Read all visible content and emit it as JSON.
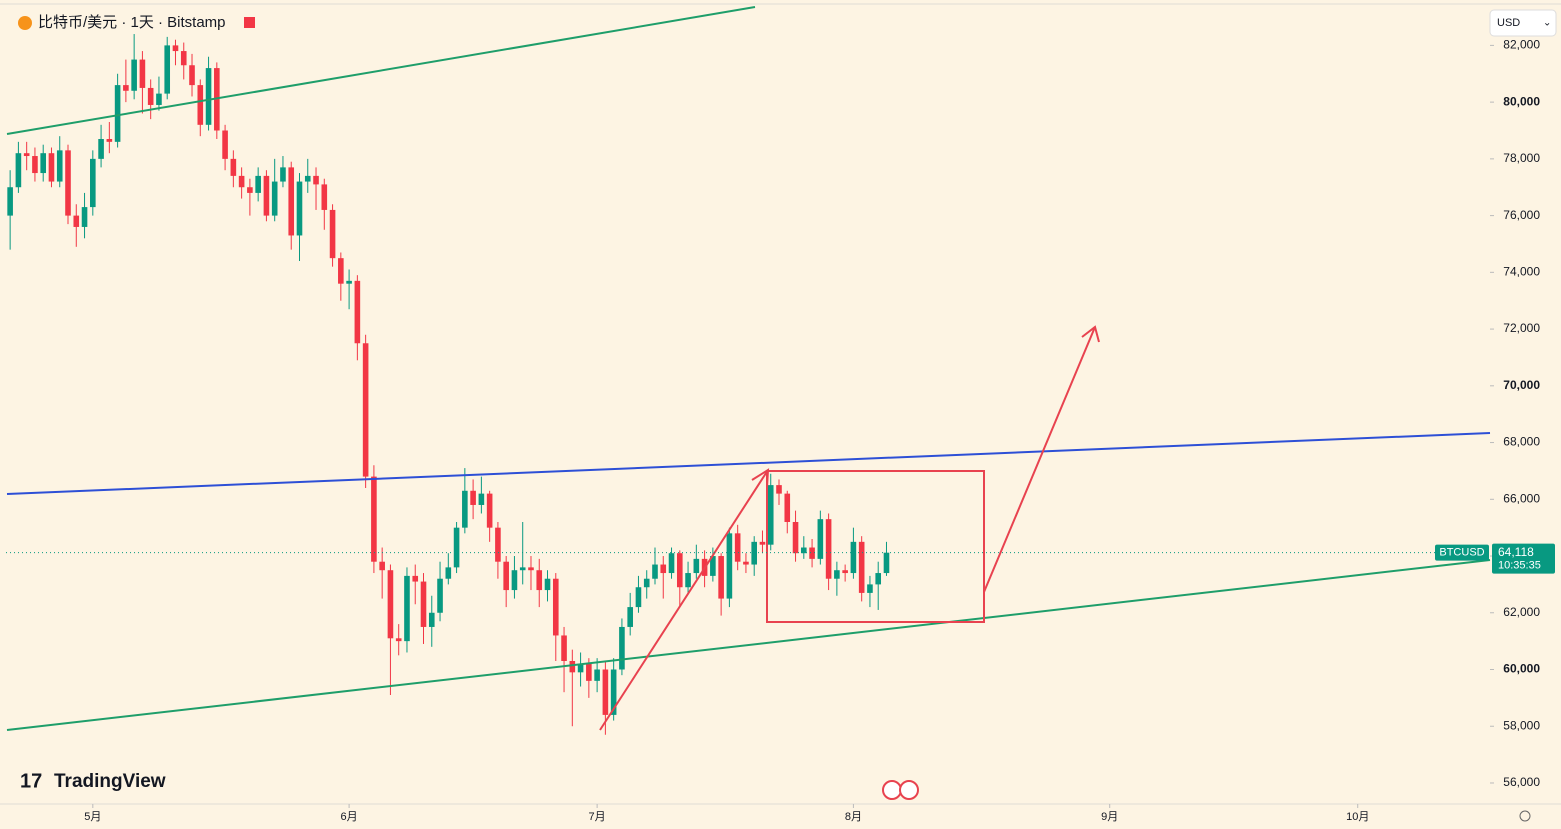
{
  "chart_data": {
    "type": "candlestick",
    "title": "比特币/美元 · 1天 · Bitstamp",
    "currency": "USD",
    "brand": "TradingView",
    "up_color": "#089981",
    "down_color": "#f23645",
    "xlim": [
      -0.5,
      179
    ],
    "xticks": [
      {
        "value": 10,
        "label": "5月"
      },
      {
        "value": 41,
        "label": "6月"
      },
      {
        "value": 71,
        "label": "7月"
      },
      {
        "value": 102,
        "label": "8月"
      },
      {
        "value": 133,
        "label": "9月"
      },
      {
        "value": 163,
        "label": "10月"
      }
    ],
    "ylim": [
      55400,
      83600
    ],
    "yticks": [
      {
        "value": 56000,
        "label": "56,000"
      },
      {
        "value": 58000,
        "label": "58,000"
      },
      {
        "value": 60000,
        "label": "60,000"
      },
      {
        "value": 62000,
        "label": "62,000"
      },
      {
        "value": 64000,
        "label": "64,000"
      },
      {
        "value": 66000,
        "label": "66,000"
      },
      {
        "value": 68000,
        "label": "68,000"
      },
      {
        "value": 70000,
        "label": "70,000"
      },
      {
        "value": 72000,
        "label": "72,000"
      },
      {
        "value": 74000,
        "label": "74,000"
      },
      {
        "value": 76000,
        "label": "76,000"
      },
      {
        "value": 78000,
        "label": "78,000"
      },
      {
        "value": 80000,
        "label": "80,000"
      },
      {
        "value": 82000,
        "label": "82,000"
      }
    ],
    "last_price": {
      "name": "BTCUSD",
      "value": 64118,
      "label": "64,118",
      "countdown": "10:35:35"
    },
    "series": [
      {
        "name": "BTCUSD",
        "open": [
          76000,
          77000,
          78200,
          78100,
          77500,
          78200,
          77200,
          78300,
          76000,
          75600,
          76300,
          78000,
          78700,
          78600,
          80600,
          80400,
          81500,
          80500,
          79900,
          80300,
          82000,
          81800,
          81300,
          80600,
          79200,
          81200,
          79000,
          78000,
          77400,
          77000,
          76800,
          77400,
          76000,
          77200,
          77700,
          75300,
          77200,
          77400,
          77100,
          76200,
          74500,
          73600,
          73700,
          71500,
          66800,
          63800,
          63500,
          61100,
          61000,
          63300,
          63100,
          61500,
          62000,
          63200,
          63600,
          65000,
          66300,
          65800,
          66200,
          65000,
          63800,
          62800,
          63500,
          63600,
          63500,
          62800,
          63200,
          61200,
          60300,
          59900,
          60200,
          59600,
          60000,
          58400,
          60000,
          61500,
          62200,
          62900,
          63200,
          63700,
          63400,
          64100,
          62900,
          63400,
          63900,
          63300,
          64000,
          62500,
          64800,
          63800,
          63700,
          64500,
          64400,
          66500,
          66200,
          65200,
          64100,
          64300,
          63900,
          65300,
          63200,
          63500,
          63400,
          64500,
          62700,
          63000,
          63400
        ],
        "high": [
          77600,
          78600,
          78600,
          78400,
          78500,
          78400,
          78800,
          78500,
          76400,
          76800,
          78300,
          79200,
          79300,
          81000,
          81500,
          82400,
          81800,
          80800,
          80900,
          82300,
          82200,
          82100,
          81700,
          80800,
          81600,
          81400,
          79200,
          78300,
          77700,
          77300,
          77700,
          77600,
          78000,
          78100,
          77900,
          77500,
          78000,
          77700,
          77300,
          76400,
          74700,
          74100,
          73900,
          71800,
          67200,
          64300,
          63700,
          61600,
          63600,
          63700,
          63400,
          62600,
          63800,
          64100,
          65200,
          67100,
          66700,
          66800,
          66300,
          65200,
          64000,
          64000,
          65200,
          64000,
          63900,
          63500,
          63400,
          61500,
          60700,
          60600,
          60400,
          60400,
          60300,
          60400,
          61800,
          62700,
          63300,
          63500,
          64300,
          64000,
          64300,
          64200,
          63800,
          64400,
          64200,
          64300,
          64100,
          65000,
          65100,
          64100,
          64700,
          64900,
          66900,
          66700,
          66300,
          65600,
          64700,
          64600,
          65600,
          65500,
          63800,
          63700,
          65000,
          64700,
          63300,
          63800,
          64500
        ],
        "low": [
          74800,
          76800,
          77600,
          77200,
          77200,
          77000,
          77000,
          75700,
          74900,
          75200,
          76000,
          77700,
          78200,
          78400,
          80000,
          80100,
          79600,
          79400,
          79700,
          80100,
          81300,
          80800,
          80200,
          78800,
          79000,
          78700,
          77600,
          77000,
          76600,
          76000,
          76500,
          75800,
          75800,
          77000,
          74800,
          74400,
          76800,
          76200,
          75500,
          74200,
          73000,
          72700,
          70900,
          66400,
          63400,
          62500,
          59100,
          60500,
          60600,
          62300,
          60900,
          60800,
          61700,
          63000,
          63400,
          64800,
          65300,
          65500,
          64500,
          63200,
          62200,
          62500,
          63000,
          62800,
          62200,
          62400,
          60300,
          59200,
          58000,
          59400,
          59000,
          59200,
          57700,
          58200,
          59800,
          61200,
          62000,
          62500,
          63000,
          62500,
          63200,
          62200,
          62700,
          63200,
          62900,
          63100,
          61900,
          62200,
          63500,
          63400,
          63300,
          64100,
          64200,
          65800,
          64800,
          63800,
          63900,
          63600,
          63700,
          62800,
          62600,
          63100,
          63200,
          62400,
          62200,
          62100,
          63300
        ],
        "close": [
          77000,
          78200,
          78100,
          77500,
          78200,
          77200,
          78300,
          76000,
          75600,
          76300,
          78000,
          78700,
          78600,
          80600,
          80400,
          81500,
          80500,
          79900,
          80300,
          82000,
          81800,
          81300,
          80600,
          79200,
          81200,
          79000,
          78000,
          77400,
          77000,
          76800,
          77400,
          76000,
          77200,
          77700,
          75300,
          77200,
          77400,
          77100,
          76200,
          74500,
          73600,
          73700,
          71500,
          66800,
          63800,
          63500,
          61100,
          61000,
          63300,
          63100,
          61500,
          62000,
          63200,
          63600,
          65000,
          66300,
          65800,
          66200,
          65000,
          63800,
          62800,
          63500,
          63600,
          63500,
          62800,
          63200,
          61200,
          60300,
          59900,
          60200,
          59600,
          60000,
          58400,
          60000,
          61500,
          62200,
          62900,
          63200,
          63700,
          63400,
          64100,
          62900,
          63400,
          63900,
          63300,
          64000,
          62500,
          64800,
          63800,
          63700,
          64500,
          64400,
          66500,
          66200,
          65200,
          64100,
          64300,
          63900,
          65300,
          63200,
          63500,
          63400,
          64500,
          62700,
          63000,
          63400,
          64118
        ]
      }
    ]
  }
}
